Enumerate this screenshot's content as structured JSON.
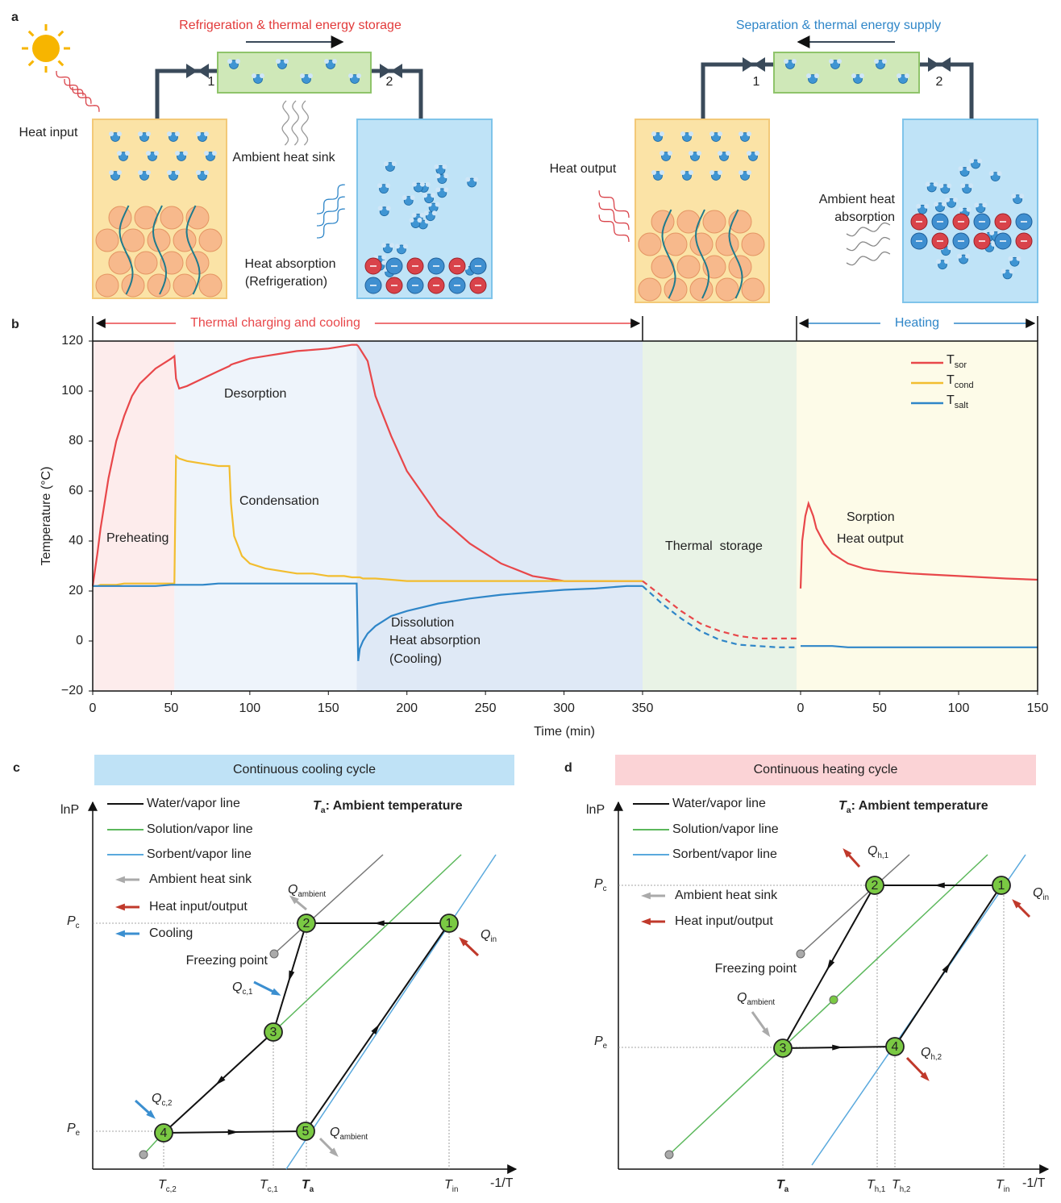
{
  "panel_labels": [
    "a",
    "b",
    "c",
    "d"
  ],
  "panel_a": {
    "left_title": "Refrigeration & thermal energy storage",
    "right_title": "Separation & thermal energy supply",
    "valves": [
      "1",
      "2",
      "1",
      "2"
    ],
    "texts": [
      "Heat input",
      "Ambient heat sink",
      "Heat absorption",
      "(Refrigeration)",
      "Heat output",
      "Ambient heat",
      "absorption"
    ]
  },
  "chart_data": [
    {
      "type": "line",
      "xlabel": "Time (min)",
      "ylabel": "Temperature (°C)",
      "header": "Thermal charging and cooling",
      "header_color": "#e8474a",
      "xlim": [
        0,
        350
      ],
      "xticks": [
        0,
        50,
        100,
        150,
        200,
        250,
        300,
        350
      ],
      "ylim": [
        -20,
        120
      ],
      "yticks": [
        {
          "value": -20,
          "label": "−20"
        },
        0,
        20,
        40,
        60,
        80,
        100,
        120
      ],
      "legend": "upper right",
      "regions": [
        {
          "x": [
            0,
            52
          ],
          "color": "#fdecec"
        },
        {
          "x": [
            52,
            168
          ],
          "color": "#eef4fb"
        },
        {
          "x": [
            168,
            350
          ],
          "color": "#dfe9f6"
        }
      ],
      "annotations": [
        "Desorption",
        "Condensation",
        "Preheating",
        "Dissolution",
        "Heat absorption",
        "(Cooling)"
      ],
      "x": [
        0,
        3,
        5,
        10,
        15,
        20,
        25,
        30,
        40,
        50,
        52,
        53,
        55,
        60,
        70,
        80,
        87,
        88,
        90,
        95,
        100,
        110,
        120,
        130,
        140,
        150,
        160,
        165,
        168,
        169,
        170,
        172,
        175,
        180,
        190,
        200,
        220,
        240,
        260,
        280,
        300,
        320,
        340,
        350
      ],
      "series": [
        {
          "name": "T",
          "name_sub": "sor",
          "color": "#e8474a",
          "values": [
            22,
            35,
            45,
            65,
            80,
            90,
            98,
            103,
            109,
            113,
            114,
            105,
            101,
            102,
            105,
            108,
            110,
            110.5,
            111,
            112,
            113,
            114,
            115,
            116,
            116.5,
            117,
            118,
            118.5,
            118.5,
            118,
            117,
            115,
            112,
            98,
            82,
            68,
            50,
            39,
            31,
            26,
            24,
            24,
            24,
            24
          ]
        },
        {
          "name": "T",
          "name_sub": "cond",
          "color": "#f2bd2f",
          "values": [
            22,
            22,
            22.5,
            22.5,
            22.5,
            23,
            23,
            23,
            23,
            23,
            23,
            74,
            73,
            72,
            71,
            70,
            70,
            55,
            42,
            34,
            31,
            29,
            28,
            27,
            27,
            26,
            26,
            25.5,
            25.5,
            25.5,
            25.5,
            25,
            25,
            25,
            24.5,
            24,
            24,
            24,
            24,
            24,
            24,
            24,
            24,
            24
          ]
        },
        {
          "name": "T",
          "name_sub": "salt",
          "color": "#2f86c8",
          "values": [
            22,
            22,
            22,
            22,
            22,
            22,
            22,
            22,
            22,
            22.5,
            22.5,
            22.5,
            22.5,
            22.5,
            22.5,
            23,
            23,
            23,
            23,
            23,
            23,
            23,
            23,
            23,
            23,
            23,
            23,
            23,
            23,
            -8,
            -3,
            0,
            3,
            6,
            10,
            12,
            15,
            17,
            18.5,
            19.5,
            20.5,
            21,
            22,
            22
          ]
        }
      ]
    },
    {
      "type": "line",
      "style": "dashed",
      "background": "#e9f3e6",
      "annotations": [
        "Thermal  storage"
      ],
      "ylim": [
        -20,
        120
      ],
      "categories": [
        null,
        null,
        null,
        null,
        null,
        null,
        null,
        null,
        null
      ],
      "series": [
        {
          "color": "#e8474a",
          "values": [
            24,
            18,
            12,
            7,
            4,
            2,
            1,
            1,
            1
          ]
        },
        {
          "color": "#2f86c8",
          "values": [
            22,
            15,
            9,
            4,
            0.5,
            -1.5,
            -2,
            -2.5,
            -2.5
          ]
        }
      ]
    },
    {
      "type": "line",
      "background": "#fdfbe8",
      "header": "Heating",
      "header_color": "#2f86c8",
      "annotations": [
        "Sorption",
        "Heat output"
      ],
      "xlim": [
        0,
        150
      ],
      "xticks": [
        0,
        50,
        100,
        150
      ],
      "ylim": [
        -20,
        120
      ],
      "x": [
        0,
        1,
        3,
        5,
        8,
        10,
        15,
        20,
        30,
        40,
        50,
        70,
        100,
        130,
        150
      ],
      "series": [
        {
          "color": "#e8474a",
          "values": [
            21,
            40,
            50,
            55,
            50,
            45,
            39,
            35,
            31,
            29,
            28,
            27,
            26,
            25,
            24.5
          ]
        },
        {
          "color": "#2f86c8",
          "values": [
            -2,
            -2,
            -2,
            -2,
            -2,
            -2,
            -2,
            -2,
            -2.5,
            -2.5,
            -2.5,
            -2.5,
            -2.5,
            -2.5,
            -2.5
          ]
        }
      ]
    }
  ],
  "panel_c": {
    "title": "Continuous cooling cycle",
    "y_axis": "lnP",
    "x_axis": "-1/T",
    "note": {
      "main": "T",
      "sub": "a",
      "rest": ": Ambient temperature"
    },
    "legend": [
      "Water/vapor line",
      "Solution/vapor line",
      "Sorbent/vapor line",
      "Ambient heat sink",
      "Heat input/output",
      "Cooling"
    ],
    "freezing": "Freezing point",
    "points": [
      "1",
      "2",
      "3",
      "4",
      "5"
    ],
    "labels": [
      {
        "main": "P",
        "sub": "c"
      },
      {
        "main": "P",
        "sub": "e"
      },
      {
        "main": "Q",
        "sub": "ambient"
      },
      {
        "main": "Q",
        "sub": "in"
      },
      {
        "main": "Q",
        "sub": "c,1"
      },
      {
        "main": "Q",
        "sub": "c,2"
      },
      {
        "main": "Q",
        "sub": "ambient"
      },
      {
        "main": "T",
        "sub": "c,2"
      },
      {
        "main": "T",
        "sub": "c,1"
      },
      {
        "main": "T",
        "sub": "a"
      },
      {
        "main": "T",
        "sub": "in"
      }
    ]
  },
  "panel_d": {
    "title": "Continuous heating cycle",
    "y_axis": "lnP",
    "x_axis": "-1/T",
    "note": {
      "main": "T",
      "sub": "a",
      "rest": ": Ambient temperature"
    },
    "legend": [
      "Water/vapor line",
      "Solution/vapor line",
      "Sorbent/vapor line",
      "Ambient heat sink",
      "Heat input/output"
    ],
    "freezing": "Freezing point",
    "points": [
      "1",
      "2",
      "3",
      "4"
    ],
    "labels": [
      {
        "main": "P",
        "sub": "c"
      },
      {
        "main": "P",
        "sub": "e"
      },
      {
        "main": "Q",
        "sub": "h,1"
      },
      {
        "main": "Q",
        "sub": "in"
      },
      {
        "main": "Q",
        "sub": "ambient"
      },
      {
        "main": "Q",
        "sub": "h,2"
      },
      {
        "main": "T",
        "sub": "a"
      },
      {
        "main": "T",
        "sub": "h,1"
      },
      {
        "main": "T",
        "sub": "h,2"
      },
      {
        "main": "T",
        "sub": "in"
      }
    ]
  }
}
